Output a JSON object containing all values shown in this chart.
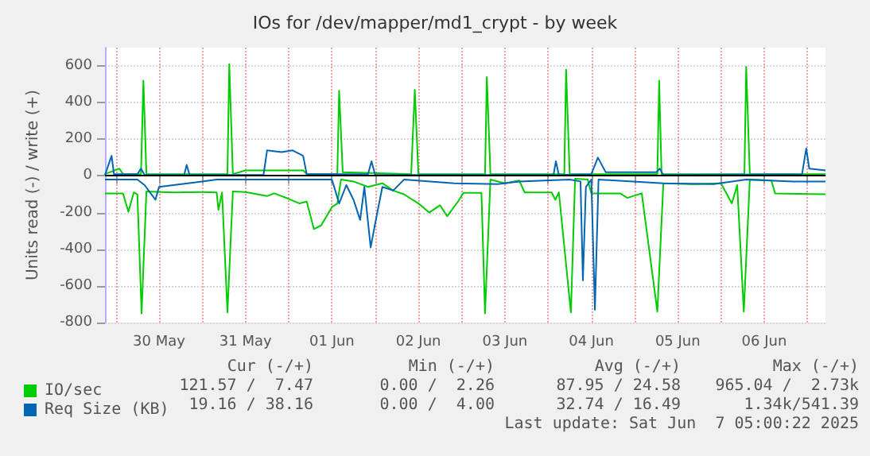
{
  "chart_data": {
    "type": "line",
    "title": "IOs for /dev/mapper/md1_crypt - by week",
    "ylabel": "Units read (-) / write (+)",
    "xlim": [
      "2025-05-29T21:00",
      "2025-06-07T05:00"
    ],
    "xticks": [
      {
        "value": "2025-05-30T00:00",
        "label": null
      },
      {
        "value": "2025-05-30T12:00",
        "label": "30 May"
      },
      {
        "value": "2025-05-31T00:00",
        "label": null
      },
      {
        "value": "2025-05-31T12:00",
        "label": "31 May"
      },
      {
        "value": "2025-06-01T00:00",
        "label": null
      },
      {
        "value": "2025-06-01T12:00",
        "label": "01 Jun"
      },
      {
        "value": "2025-06-02T00:00",
        "label": null
      },
      {
        "value": "2025-06-02T12:00",
        "label": "02 Jun"
      },
      {
        "value": "2025-06-03T00:00",
        "label": null
      },
      {
        "value": "2025-06-03T12:00",
        "label": "03 Jun"
      },
      {
        "value": "2025-06-04T00:00",
        "label": null
      },
      {
        "value": "2025-06-04T12:00",
        "label": "04 Jun"
      },
      {
        "value": "2025-06-05T00:00",
        "label": null
      },
      {
        "value": "2025-06-05T12:00",
        "label": "05 Jun"
      },
      {
        "value": "2025-06-06T00:00",
        "label": null
      },
      {
        "value": "2025-06-06T12:00",
        "label": "06 Jun"
      },
      {
        "value": "2025-06-07T00:00",
        "label": null
      }
    ],
    "ylim": [
      -800,
      700
    ],
    "yticks": [
      -800,
      -600,
      -400,
      -200,
      0,
      200,
      400,
      600
    ],
    "grid": true,
    "legend": "bottom left",
    "marker": "none",
    "line_style": "solid",
    "ref_lines": [
      {
        "axis": "y",
        "value": 0,
        "color": "#000000"
      }
    ],
    "series": [
      {
        "name": "IO/sec",
        "color": "#00cc00",
        "x": [
          "2025-05-29T21:00",
          "2025-05-30T02:00",
          "2025-05-30T03:30",
          "2025-05-30T05:00",
          "2025-05-30T06:00",
          "2025-05-30T07:10",
          "2025-05-30T08:30",
          "2025-05-30T16:00",
          "2025-05-31T00:00",
          "2025-05-31T04:00",
          "2025-05-31T04:30",
          "2025-05-31T05:30",
          "2025-05-31T07:00",
          "2025-05-31T08:30",
          "2025-05-31T12:00",
          "2025-05-31T18:00",
          "2025-05-31T20:00",
          "2025-06-01T00:00",
          "2025-06-01T03:00",
          "2025-06-01T05:00",
          "2025-06-01T07:00",
          "2025-06-01T09:00",
          "2025-06-01T12:00",
          "2025-06-01T13:30",
          "2025-06-01T14:30",
          "2025-06-01T18:00",
          "2025-06-01T22:00",
          "2025-06-02T02:00",
          "2025-06-02T05:00",
          "2025-06-02T08:00",
          "2025-06-02T12:00",
          "2025-06-02T15:00",
          "2025-06-02T18:00",
          "2025-06-02T20:00",
          "2025-06-02T23:00",
          "2025-06-03T00:30",
          "2025-06-03T05:30",
          "2025-06-03T06:30",
          "2025-06-03T08:00",
          "2025-06-03T12:00",
          "2025-06-03T16:00",
          "2025-06-03T17:30",
          "2025-06-04T01:00",
          "2025-06-04T02:00",
          "2025-06-04T03:00",
          "2025-06-04T06:20",
          "2025-06-04T07:30",
          "2025-06-04T11:00",
          "2025-06-04T12:00",
          "2025-06-04T20:00",
          "2025-06-04T22:00",
          "2025-06-05T02:00",
          "2025-06-05T06:20",
          "2025-06-05T08:00",
          "2025-06-05T16:00",
          "2025-06-06T00:00",
          "2025-06-06T03:00",
          "2025-06-06T04:30",
          "2025-06-06T06:20",
          "2025-06-06T08:00",
          "2025-06-06T14:00",
          "2025-06-06T15:00",
          "2025-06-07T05:00"
        ],
        "values": [
          -95,
          -95,
          -195,
          -90,
          -100,
          -750,
          -85,
          -90,
          -88,
          -90,
          -185,
          -90,
          -745,
          -85,
          -88,
          -110,
          -95,
          -125,
          -150,
          -140,
          -290,
          -270,
          -170,
          -150,
          -20,
          -30,
          -60,
          -40,
          -80,
          -100,
          -150,
          -200,
          -160,
          -220,
          -140,
          -92,
          -92,
          -750,
          -20,
          -40,
          -25,
          -90,
          -90,
          -130,
          -90,
          -745,
          -15,
          -20,
          -95,
          -95,
          -120,
          -95,
          -740,
          -40,
          -45,
          -40,
          -150,
          -50,
          -740,
          -20,
          -25,
          -95,
          -100
        ]
      },
      {
        "color": "#00cc00",
        "x": [
          "2025-05-29T21:00",
          "2025-05-30T01:00",
          "2025-05-30T02:00",
          "2025-05-30T07:00",
          "2025-05-30T07:40",
          "2025-05-30T08:30",
          "2025-05-31T07:00",
          "2025-05-31T07:30",
          "2025-05-31T08:30",
          "2025-05-31T12:00",
          "2025-06-01T04:00",
          "2025-06-01T05:00",
          "2025-06-01T13:30",
          "2025-06-01T14:00",
          "2025-06-01T15:00",
          "2025-06-02T10:00",
          "2025-06-02T11:00",
          "2025-06-02T12:00",
          "2025-06-03T06:30",
          "2025-06-03T07:00",
          "2025-06-03T08:00",
          "2025-06-04T04:30",
          "2025-06-04T05:00",
          "2025-06-04T06:00",
          "2025-06-05T06:20",
          "2025-06-05T06:50",
          "2025-06-05T07:30",
          "2025-06-06T06:30",
          "2025-06-06T07:00",
          "2025-06-06T08:00",
          "2025-06-07T05:00"
        ],
        "values": [
          10,
          40,
          10,
          10,
          520,
          10,
          10,
          610,
          10,
          30,
          30,
          10,
          10,
          465,
          20,
          10,
          470,
          10,
          10,
          540,
          10,
          10,
          580,
          10,
          10,
          520,
          10,
          10,
          595,
          10,
          10
        ]
      },
      {
        "name": "Req Size (KB)",
        "color": "#0066b3",
        "x": [
          "2025-05-29T21:00",
          "2025-05-30T06:00",
          "2025-05-30T08:00",
          "2025-05-30T11:00",
          "2025-05-30T12:00",
          "2025-05-30T20:00",
          "2025-05-31T04:00",
          "2025-06-01T12:00",
          "2025-06-01T14:00",
          "2025-06-01T16:00",
          "2025-06-01T18:00",
          "2025-06-01T19:50",
          "2025-06-01T21:00",
          "2025-06-01T22:45",
          "2025-06-02T00:00",
          "2025-06-02T02:00",
          "2025-06-02T05:00",
          "2025-06-02T08:00",
          "2025-06-02T22:00",
          "2025-06-03T10:00",
          "2025-06-03T16:00",
          "2025-06-04T06:00",
          "2025-06-04T09:00",
          "2025-06-04T09:40",
          "2025-06-04T10:30",
          "2025-06-04T12:00",
          "2025-06-04T13:00",
          "2025-06-04T14:00",
          "2025-06-05T08:00",
          "2025-06-05T22:00",
          "2025-06-06T07:00",
          "2025-06-06T20:00",
          "2025-06-07T05:00"
        ],
        "values": [
          -20,
          -20,
          -50,
          -130,
          -60,
          -40,
          -20,
          -20,
          -150,
          -50,
          -130,
          -240,
          -60,
          -390,
          -260,
          -60,
          -80,
          -20,
          -40,
          -45,
          -30,
          -20,
          -30,
          -570,
          -60,
          -20,
          -730,
          -20,
          -40,
          -45,
          -20,
          -30,
          -30
        ]
      },
      {
        "color": "#0066b3",
        "x": [
          "2025-05-29T21:00",
          "2025-05-29T22:50",
          "2025-05-29T23:30",
          "2025-05-30T06:00",
          "2025-05-30T07:00",
          "2025-05-30T08:00",
          "2025-05-30T19:00",
          "2025-05-30T19:40",
          "2025-05-30T20:30",
          "2025-05-31T17:00",
          "2025-05-31T18:00",
          "2025-05-31T22:00",
          "2025-06-01T01:00",
          "2025-06-01T04:00",
          "2025-06-01T05:00",
          "2025-06-01T22:00",
          "2025-06-01T23:00",
          "2025-06-02T00:00",
          "2025-06-04T01:30",
          "2025-06-04T02:10",
          "2025-06-04T03:00",
          "2025-06-04T12:00",
          "2025-06-04T13:50",
          "2025-06-04T16:00",
          "2025-06-05T06:00",
          "2025-06-05T07:00",
          "2025-06-05T08:00",
          "2025-06-06T22:30",
          "2025-06-06T23:40",
          "2025-06-07T00:30",
          "2025-06-07T05:00"
        ],
        "values": [
          5,
          110,
          10,
          10,
          40,
          5,
          5,
          60,
          5,
          5,
          140,
          130,
          140,
          110,
          10,
          10,
          80,
          5,
          5,
          80,
          5,
          10,
          100,
          20,
          20,
          40,
          5,
          10,
          150,
          40,
          30
        ]
      }
    ],
    "annotations": [
      "Cur (-/+)",
      "Min (-/+)",
      "Avg (-/+)",
      "Max (-/+)",
      "121.57 /  7.47",
      "0.00 /  2.26",
      "87.95 / 24.58",
      "965.04 /  2.73k",
      "19.16 / 38.16",
      "0.00 /  4.00",
      "32.74 / 16.49",
      "1.34k/541.39",
      "Last update: Sat Jun  7 05:00:22 2025"
    ]
  }
}
